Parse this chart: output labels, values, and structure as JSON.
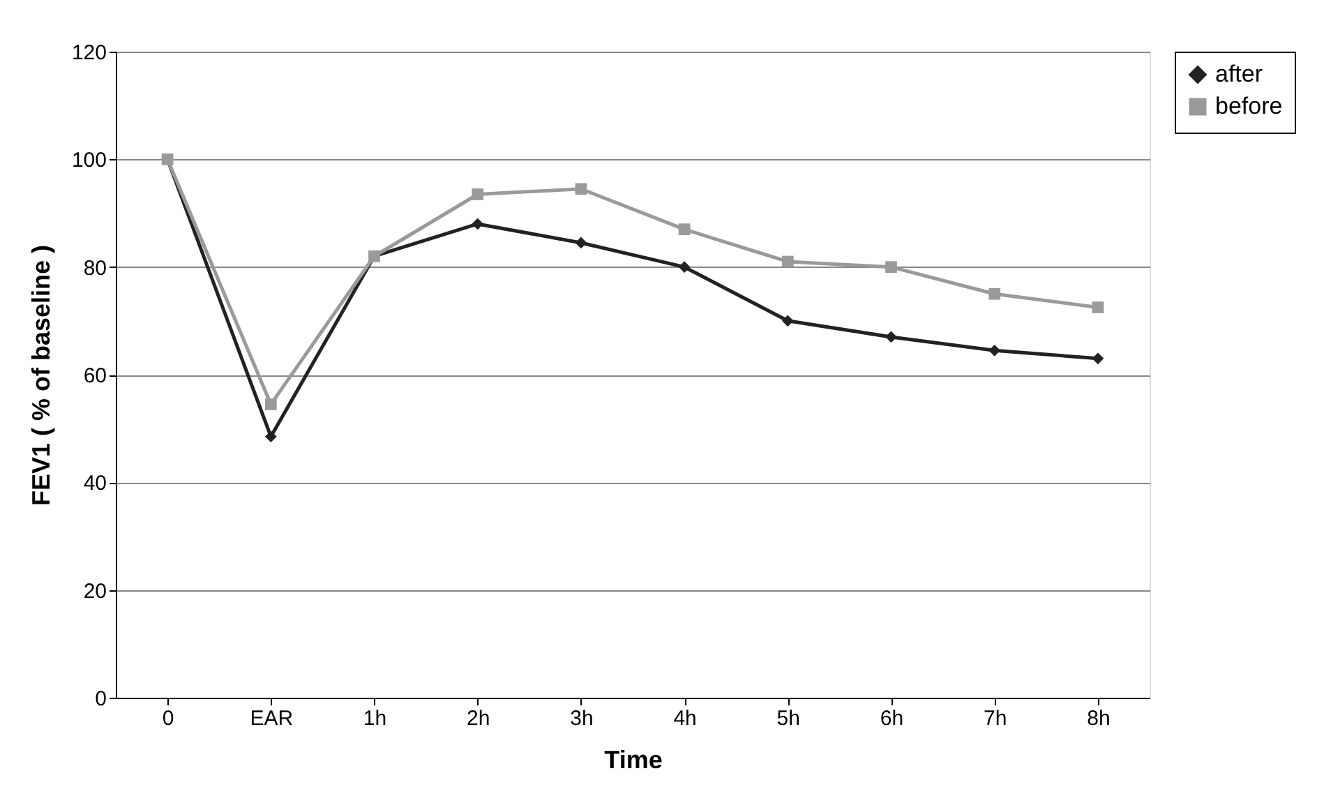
{
  "chart_data": {
    "type": "line",
    "xlabel": "Time",
    "ylabel": "FEV1 ( % of baseline )",
    "categories": [
      "0",
      "EAR",
      "1h",
      "2h",
      "3h",
      "4h",
      "5h",
      "6h",
      "7h",
      "8h"
    ],
    "series": [
      {
        "name": "after",
        "color": "#222222",
        "marker": "diamond",
        "values": [
          100,
          48.5,
          82,
          88,
          84.5,
          80,
          70,
          67,
          64.5,
          63
        ]
      },
      {
        "name": "before",
        "color": "#9a9a9a",
        "marker": "square",
        "values": [
          100,
          54.5,
          82,
          93.5,
          94.5,
          87,
          81,
          80,
          75,
          72.5
        ]
      }
    ],
    "ylim": [
      0,
      120
    ],
    "yticks": [
      0,
      20,
      40,
      60,
      80,
      100,
      120
    ],
    "grid": "y",
    "legend": "right",
    "line_style": "solid"
  }
}
